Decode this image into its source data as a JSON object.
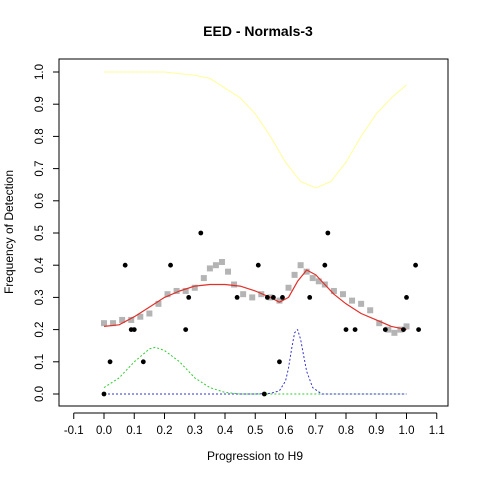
{
  "chart_data": {
    "type": "scatter",
    "title": "EED - Normals-3",
    "xlabel": "Progression to H9",
    "ylabel": "Frequency of Detection",
    "xlim": [
      -0.1,
      1.1
    ],
    "ylim": [
      0.0,
      1.0
    ],
    "x_ticks": [
      "-0.1",
      "0.0",
      "0.1",
      "0.2",
      "0.3",
      "0.4",
      "0.5",
      "0.6",
      "0.7",
      "0.8",
      "0.9",
      "1.0",
      "1.1"
    ],
    "y_ticks": [
      "0.0",
      "0.1",
      "0.2",
      "0.3",
      "0.4",
      "0.5",
      "0.6",
      "0.7",
      "0.8",
      "0.9",
      "1.0"
    ],
    "grid": false,
    "colors": {
      "grey_points": "#b4b4b4",
      "black_points": "#000000",
      "red_curve": "#e0302a",
      "yellow_curve": "#ffff99",
      "green_curve": "#33cc33",
      "blue_curve": "#3333cc"
    },
    "series": [
      {
        "style": "black-points",
        "x": [
          0.0,
          0.02,
          0.07,
          0.09,
          0.1,
          0.13,
          0.22,
          0.27,
          0.28,
          0.32,
          0.44,
          0.51,
          0.53,
          0.54,
          0.56,
          0.58,
          0.59,
          0.68,
          0.73,
          0.74,
          0.8,
          0.83,
          0.93,
          0.99,
          1.0,
          1.03,
          1.04
        ],
        "y": [
          0.0,
          0.1,
          0.4,
          0.2,
          0.2,
          0.1,
          0.4,
          0.2,
          0.3,
          0.5,
          0.3,
          0.4,
          0.0,
          0.3,
          0.3,
          0.1,
          0.3,
          0.3,
          0.4,
          0.5,
          0.2,
          0.2,
          0.2,
          0.2,
          0.3,
          0.4,
          0.2
        ]
      },
      {
        "style": "grey-points",
        "x": [
          0.0,
          0.03,
          0.06,
          0.09,
          0.12,
          0.15,
          0.18,
          0.21,
          0.24,
          0.27,
          0.3,
          0.33,
          0.35,
          0.37,
          0.39,
          0.41,
          0.43,
          0.46,
          0.49,
          0.52,
          0.55,
          0.58,
          0.61,
          0.63,
          0.65,
          0.67,
          0.69,
          0.71,
          0.73,
          0.76,
          0.79,
          0.82,
          0.85,
          0.88,
          0.91,
          0.94,
          0.96,
          0.98,
          1.0
        ],
        "y": [
          0.22,
          0.22,
          0.23,
          0.23,
          0.24,
          0.25,
          0.28,
          0.31,
          0.32,
          0.32,
          0.33,
          0.36,
          0.39,
          0.4,
          0.41,
          0.38,
          0.34,
          0.31,
          0.3,
          0.31,
          0.3,
          0.29,
          0.33,
          0.37,
          0.4,
          0.38,
          0.36,
          0.35,
          0.34,
          0.32,
          0.31,
          0.29,
          0.28,
          0.26,
          0.22,
          0.2,
          0.19,
          0.2,
          0.21
        ]
      },
      {
        "style": "red-curve",
        "x": [
          0.0,
          0.05,
          0.1,
          0.15,
          0.2,
          0.25,
          0.3,
          0.35,
          0.4,
          0.45,
          0.5,
          0.55,
          0.58,
          0.61,
          0.64,
          0.67,
          0.7,
          0.73,
          0.76,
          0.8,
          0.85,
          0.9,
          0.95,
          1.0
        ],
        "y": [
          0.21,
          0.215,
          0.24,
          0.27,
          0.3,
          0.32,
          0.335,
          0.34,
          0.34,
          0.335,
          0.32,
          0.3,
          0.285,
          0.3,
          0.35,
          0.385,
          0.37,
          0.34,
          0.31,
          0.28,
          0.25,
          0.23,
          0.21,
          0.2
        ]
      },
      {
        "style": "yellow-curve",
        "x": [
          0.0,
          0.1,
          0.2,
          0.3,
          0.35,
          0.4,
          0.45,
          0.5,
          0.55,
          0.6,
          0.65,
          0.7,
          0.75,
          0.8,
          0.85,
          0.9,
          0.95,
          1.0
        ],
        "y": [
          1.0,
          1.0,
          1.0,
          0.99,
          0.98,
          0.95,
          0.92,
          0.87,
          0.8,
          0.72,
          0.66,
          0.64,
          0.66,
          0.72,
          0.8,
          0.87,
          0.92,
          0.96
        ]
      },
      {
        "style": "green-curve",
        "x": [
          0.0,
          0.05,
          0.1,
          0.15,
          0.17,
          0.2,
          0.25,
          0.3,
          0.35,
          0.4,
          0.45,
          0.5,
          0.6,
          0.7,
          0.8,
          0.9,
          1.0
        ],
        "y": [
          0.02,
          0.05,
          0.1,
          0.14,
          0.145,
          0.135,
          0.1,
          0.05,
          0.02,
          0.005,
          0.0,
          0.0,
          0.0,
          0.0,
          0.0,
          0.0,
          0.0
        ]
      },
      {
        "style": "blue-curve",
        "x": [
          0.0,
          0.5,
          0.55,
          0.58,
          0.6,
          0.61,
          0.62,
          0.63,
          0.64,
          0.65,
          0.66,
          0.67,
          0.69,
          0.72,
          0.8,
          1.0
        ],
        "y": [
          0.0,
          0.0,
          0.002,
          0.01,
          0.04,
          0.08,
          0.14,
          0.19,
          0.2,
          0.17,
          0.12,
          0.07,
          0.02,
          0.0,
          0.0,
          0.0
        ]
      }
    ]
  }
}
